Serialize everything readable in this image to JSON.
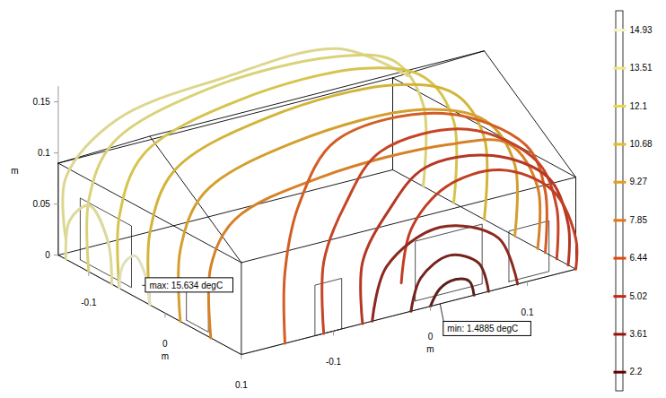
{
  "chart_data": {
    "type": "streamline3d",
    "x_label": "m",
    "y_label": "m",
    "z_label": "m",
    "xlim": [
      -0.14,
      0.1
    ],
    "ylim": [
      -0.195,
      0.15
    ],
    "zlim": [
      0,
      0.165
    ],
    "xticks": [
      -0.1,
      0,
      0.1
    ],
    "yticks": [
      -0.1,
      0,
      0.1
    ],
    "zticks": [
      0,
      0.05,
      0.1,
      0.15
    ],
    "wall_height": 0.09,
    "colorbar": {
      "range": [
        1.4885,
        15.634
      ],
      "ticks": [
        14.93,
        13.51,
        12.1,
        10.68,
        9.27,
        7.85,
        6.44,
        5.02,
        3.61,
        2.2
      ]
    },
    "streamlines": [
      {
        "value": 14.0,
        "path": [
          [
            -0.13,
            -0.195,
            0.02
          ],
          [
            -0.13,
            -0.195,
            0.08
          ],
          [
            -0.12,
            -0.15,
            0.13
          ],
          [
            -0.11,
            -0.05,
            0.15
          ],
          [
            -0.11,
            0.07,
            0.15
          ],
          [
            -0.12,
            0.15,
            0.1
          ]
        ]
      },
      {
        "value": 13.4,
        "path": [
          [
            -0.1,
            -0.195,
            0
          ],
          [
            -0.1,
            -0.195,
            0.07
          ],
          [
            -0.1,
            -0.17,
            0.12
          ],
          [
            -0.09,
            -0.08,
            0.155
          ],
          [
            -0.09,
            0.05,
            0.155
          ],
          [
            -0.1,
            0.12,
            0.13
          ],
          [
            -0.1,
            0.15,
            0.08
          ],
          [
            -0.1,
            0.15,
            0
          ]
        ]
      },
      {
        "value": 12.0,
        "path": [
          [
            -0.06,
            -0.195,
            0
          ],
          [
            -0.06,
            -0.195,
            0.07
          ],
          [
            -0.06,
            -0.17,
            0.125
          ],
          [
            -0.05,
            -0.08,
            0.16
          ],
          [
            -0.05,
            0.05,
            0.16
          ],
          [
            -0.06,
            0.12,
            0.13
          ],
          [
            -0.06,
            0.15,
            0.08
          ],
          [
            -0.06,
            0.15,
            0
          ]
        ]
      },
      {
        "value": 10.8,
        "path": [
          [
            -0.02,
            -0.195,
            0
          ],
          [
            -0.02,
            -0.195,
            0.07
          ],
          [
            -0.02,
            -0.17,
            0.125
          ],
          [
            -0.01,
            -0.08,
            0.16
          ],
          [
            -0.01,
            0.05,
            0.16
          ],
          [
            -0.02,
            0.12,
            0.13
          ],
          [
            -0.02,
            0.15,
            0.08
          ],
          [
            -0.02,
            0.15,
            0
          ]
        ]
      },
      {
        "value": 9.6,
        "path": [
          [
            0.02,
            -0.195,
            0
          ],
          [
            0.02,
            -0.195,
            0.07
          ],
          [
            0.02,
            -0.17,
            0.12
          ],
          [
            0.025,
            -0.08,
            0.15
          ],
          [
            0.025,
            0.05,
            0.15
          ],
          [
            0.02,
            0.12,
            0.12
          ],
          [
            0.02,
            0.15,
            0.07
          ],
          [
            0.02,
            0.15,
            0
          ]
        ]
      },
      {
        "value": 8.2,
        "path": [
          [
            0.06,
            -0.195,
            0
          ],
          [
            0.06,
            -0.195,
            0.07
          ],
          [
            0.06,
            -0.17,
            0.11
          ],
          [
            0.06,
            -0.08,
            0.13
          ],
          [
            0.06,
            0.05,
            0.13
          ],
          [
            0.05,
            0.12,
            0.11
          ],
          [
            0.05,
            0.15,
            0.06
          ],
          [
            0.05,
            0.15,
            0
          ]
        ]
      },
      {
        "value": 6.8,
        "path": [
          [
            0.1,
            -0.15,
            0
          ],
          [
            0.1,
            -0.15,
            0.07
          ],
          [
            0.08,
            -0.12,
            0.12
          ],
          [
            0.04,
            -0.05,
            0.15
          ],
          [
            0.04,
            0.06,
            0.15
          ],
          [
            0.06,
            0.13,
            0.11
          ],
          [
            0.06,
            0.15,
            0.06
          ],
          [
            0.06,
            0.15,
            0
          ]
        ]
      },
      {
        "value": 5.6,
        "path": [
          [
            0.1,
            -0.11,
            0
          ],
          [
            0.1,
            -0.11,
            0.07
          ],
          [
            0.09,
            -0.08,
            0.115
          ],
          [
            0.06,
            -0.02,
            0.14
          ],
          [
            0.06,
            0.07,
            0.14
          ],
          [
            0.075,
            0.13,
            0.1
          ],
          [
            0.075,
            0.15,
            0.05
          ],
          [
            0.075,
            0.15,
            0
          ]
        ]
      },
      {
        "value": 4.8,
        "path": [
          [
            0.1,
            -0.07,
            0
          ],
          [
            0.1,
            -0.07,
            0.06
          ],
          [
            0.095,
            -0.04,
            0.1
          ],
          [
            0.08,
            0.01,
            0.125
          ],
          [
            0.08,
            0.08,
            0.12
          ],
          [
            0.09,
            0.13,
            0.09
          ],
          [
            0.09,
            0.15,
            0.04
          ],
          [
            0.09,
            0.15,
            0
          ]
        ]
      },
      {
        "value": 5.3,
        "path": [
          [
            0.1,
            -0.03,
            0.03
          ],
          [
            0.1,
            -0.02,
            0.08
          ],
          [
            0.095,
            0.02,
            0.11
          ],
          [
            0.09,
            0.08,
            0.11
          ],
          [
            0.095,
            0.13,
            0.08
          ],
          [
            0.1,
            0.15,
            0.03
          ],
          [
            0.1,
            0.15,
            0
          ]
        ]
      },
      {
        "value": 14.3,
        "path": [
          [
            -0.13,
            -0.195,
            0
          ],
          [
            -0.125,
            -0.195,
            0.04
          ],
          [
            -0.1,
            -0.195,
            0.065
          ],
          [
            -0.075,
            -0.195,
            0.04
          ],
          [
            -0.07,
            -0.195,
            0
          ]
        ]
      },
      {
        "value": 15.3,
        "path": [
          [
            -0.06,
            -0.195,
            0
          ],
          [
            -0.055,
            -0.195,
            0.025
          ],
          [
            -0.04,
            -0.195,
            0.04
          ],
          [
            -0.025,
            -0.195,
            0.025
          ],
          [
            -0.02,
            -0.195,
            0
          ]
        ]
      },
      {
        "value": 3.3,
        "path": [
          [
            0.1,
            -0.06,
            0
          ],
          [
            0.1,
            -0.045,
            0.05
          ],
          [
            0.1,
            0.01,
            0.075
          ],
          [
            0.1,
            0.07,
            0.05
          ],
          [
            0.1,
            0.09,
            0
          ]
        ]
      },
      {
        "value": 2.6,
        "path": [
          [
            0.1,
            -0.02,
            0
          ],
          [
            0.1,
            -0.01,
            0.03
          ],
          [
            0.1,
            0.02,
            0.045
          ],
          [
            0.1,
            0.05,
            0.03
          ],
          [
            0.1,
            0.06,
            0
          ]
        ]
      },
      {
        "value": 1.9,
        "path": [
          [
            0.1,
            0.0,
            0
          ],
          [
            0.1,
            0.01,
            0.015
          ],
          [
            0.1,
            0.025,
            0.02
          ],
          [
            0.1,
            0.04,
            0.015
          ],
          [
            0.1,
            0.045,
            0
          ]
        ]
      }
    ],
    "annotations": [
      {
        "text": "max: 15.634 degC",
        "point": [
          -0.03,
          -0.195,
          0.015
        ]
      },
      {
        "text": "min: 1.4885 degC",
        "point": [
          0.1,
          0.01,
          0
        ]
      }
    ]
  }
}
